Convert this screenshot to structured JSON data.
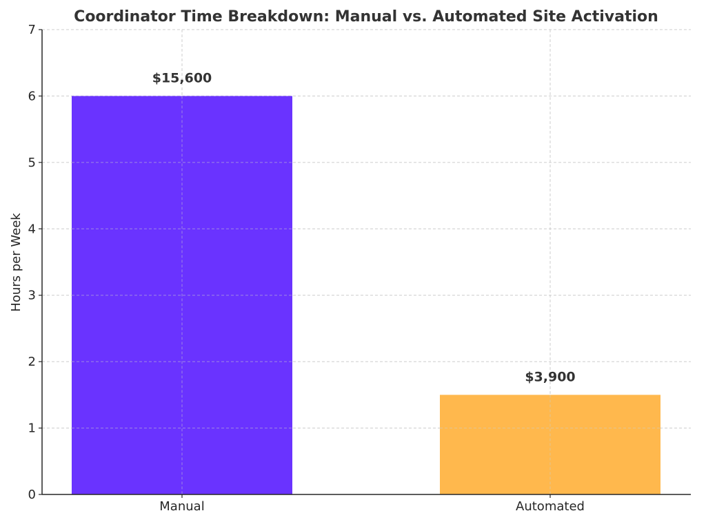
{
  "chart_data": {
    "type": "bar",
    "title": "Coordinator Time Breakdown: Manual vs. Automated Site Activation",
    "xlabel": "",
    "ylabel": "Hours per Week",
    "categories": [
      "Manual",
      "Automated"
    ],
    "values": [
      6,
      1.5
    ],
    "data_labels": [
      "$15,600",
      "$3,900"
    ],
    "colors": [
      "#6a33ff",
      "#ffb84d"
    ],
    "ylim": [
      0,
      7
    ],
    "yticks": [
      0,
      1,
      2,
      3,
      4,
      5,
      6,
      7
    ],
    "grid": true,
    "legend": false
  }
}
